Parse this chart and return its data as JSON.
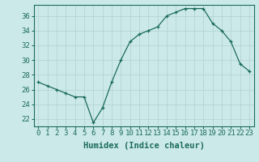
{
  "x": [
    0,
    1,
    2,
    3,
    4,
    5,
    6,
    7,
    8,
    9,
    10,
    11,
    12,
    13,
    14,
    15,
    16,
    17,
    18,
    19,
    20,
    21,
    22,
    23
  ],
  "y": [
    27,
    26.5,
    26,
    25.5,
    25,
    25,
    21.5,
    23.5,
    27,
    30,
    32.5,
    33.5,
    34,
    34.5,
    36,
    36.5,
    37,
    37,
    37,
    35,
    34,
    32.5,
    29.5,
    28.5
  ],
  "line_color": "#1a6b5a",
  "marker": "+",
  "marker_color": "#1a6b5a",
  "bg_color": "#cce9e9",
  "grid_color": "#b0d0d0",
  "xlabel": "Humidex (Indice chaleur)",
  "xlim": [
    -0.5,
    23.5
  ],
  "ylim": [
    21.0,
    37.5
  ],
  "yticks": [
    22,
    24,
    26,
    28,
    30,
    32,
    34,
    36
  ],
  "xtick_labels": [
    "0",
    "1",
    "2",
    "3",
    "4",
    "5",
    "6",
    "7",
    "8",
    "9",
    "10",
    "11",
    "12",
    "13",
    "14",
    "15",
    "16",
    "17",
    "18",
    "19",
    "20",
    "21",
    "22",
    "23"
  ],
  "xlabel_fontsize": 7.5,
  "tick_fontsize": 6.5
}
